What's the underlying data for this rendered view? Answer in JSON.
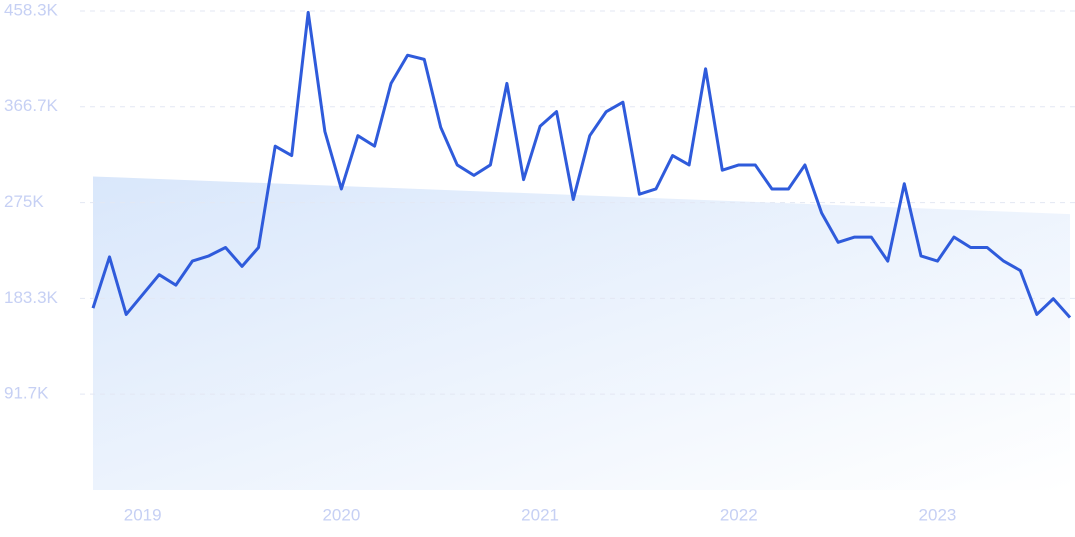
{
  "chart_data": {
    "type": "line",
    "color": "#2f5bdb",
    "grid": true,
    "x": [
      2018.75,
      2018.833,
      2018.917,
      2019,
      2019.083,
      2019.167,
      2019.25,
      2019.333,
      2019.417,
      2019.5,
      2019.583,
      2019.667,
      2019.75,
      2019.833,
      2019.917,
      2020,
      2020.083,
      2020.167,
      2020.25,
      2020.333,
      2020.417,
      2020.5,
      2020.583,
      2020.667,
      2020.75,
      2020.833,
      2020.917,
      2021,
      2021.083,
      2021.167,
      2021.25,
      2021.333,
      2021.417,
      2021.5,
      2021.583,
      2021.667,
      2021.75,
      2021.833,
      2021.917,
      2022,
      2022.083,
      2022.167,
      2022.25,
      2022.333,
      2022.417,
      2022.5,
      2022.583,
      2022.667,
      2022.75,
      2022.833,
      2022.917,
      2023,
      2023.083,
      2023.167,
      2023.25,
      2023.333,
      2023.417,
      2023.5,
      2023.583,
      2023.667
    ],
    "values": [
      174,
      223,
      168,
      187,
      206,
      196,
      219,
      224,
      232,
      214,
      232,
      329,
      320,
      457,
      343,
      288,
      339,
      329,
      389,
      416,
      412,
      347,
      311,
      301,
      311,
      389,
      297,
      348,
      362,
      278,
      339,
      362,
      371,
      283,
      288,
      320,
      311,
      403,
      306,
      311,
      311,
      288,
      288,
      311,
      265,
      237,
      242,
      242,
      219,
      293,
      224,
      219,
      242,
      232,
      232,
      219,
      210,
      168,
      183,
      165
    ],
    "trend": {
      "x": [
        2018.75,
        2023.667
      ],
      "values": [
        300,
        264
      ]
    },
    "xlim": [
      2018.75,
      2023.667
    ],
    "xticks": [
      2019,
      2020,
      2021,
      2022,
      2023
    ],
    "ylim": [
      0,
      458.3
    ],
    "yticks": [
      {
        "value": 91.7,
        "label": "91.7K"
      },
      {
        "value": 183.3,
        "label": "183.3K"
      },
      {
        "value": 275,
        "label": "275K"
      },
      {
        "value": 366.7,
        "label": "366.7K"
      },
      {
        "value": 458.3,
        "label": "458.3K"
      }
    ]
  }
}
